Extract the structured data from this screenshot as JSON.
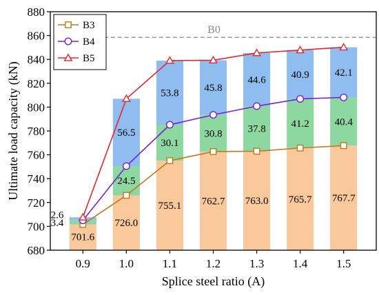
{
  "chart_data": {
    "type": "bar",
    "xlabel": "Splice steel ratio (A)",
    "ylabel": "Ultimate load capacity (kN)",
    "categories": [
      "0.9",
      "1.0",
      "1.1",
      "1.2",
      "1.3",
      "1.4",
      "1.5"
    ],
    "ylim": [
      680,
      880
    ],
    "yticks": [
      680,
      700,
      720,
      740,
      760,
      780,
      800,
      820,
      840,
      860,
      880
    ],
    "stacked_segments": [
      {
        "values": [
          701.6,
          726.0,
          755.1,
          762.7,
          763.0,
          765.7,
          767.7
        ],
        "labels": [
          "701.6",
          "726.0",
          "755.1",
          "762.7",
          "763.0",
          "765.7",
          "767.7"
        ],
        "color": "#f9c89b"
      },
      {
        "values": [
          3.4,
          24.5,
          30.1,
          30.8,
          37.8,
          41.2,
          40.4
        ],
        "labels": [
          "3.4",
          "24.5",
          "30.1",
          "30.8",
          "37.8",
          "41.2",
          "40.4"
        ],
        "color": "#8dd7a0"
      },
      {
        "values": [
          2.6,
          56.5,
          53.8,
          45.8,
          44.6,
          40.9,
          42.1
        ],
        "labels": [
          "2.6",
          "56.5",
          "53.8",
          "45.8",
          "44.6",
          "40.9",
          "42.1"
        ],
        "color": "#8fbdf0"
      }
    ],
    "series": [
      {
        "name": "B3",
        "values": [
          701.6,
          726.0,
          755.1,
          762.7,
          763.0,
          765.7,
          767.7
        ],
        "color": "#c07a1e",
        "marker": "square"
      },
      {
        "name": "B4",
        "values": [
          705.0,
          750.5,
          785.2,
          793.5,
          800.8,
          806.9,
          808.1
        ],
        "color": "#7a1fd6",
        "marker": "circle"
      },
      {
        "name": "B5",
        "values": [
          707.6,
          807.0,
          839.0,
          839.3,
          845.4,
          847.8,
          850.2
        ],
        "color": "#e8242c",
        "marker": "triangle"
      }
    ],
    "reference_line": {
      "label": "B0",
      "value": 858.5,
      "color": "#9a9a9a"
    },
    "legend_position": "top-left"
  }
}
